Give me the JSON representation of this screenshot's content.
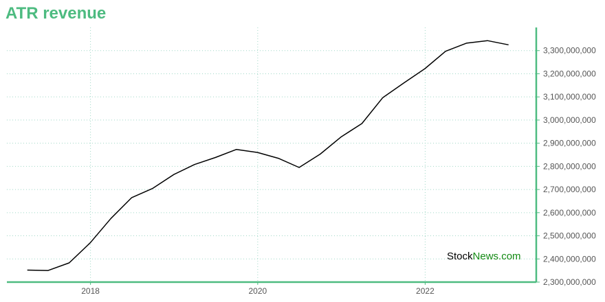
{
  "chart_data": {
    "type": "line",
    "title": "ATR revenue",
    "xlabel": "",
    "ylabel": "",
    "x_ticks": [
      "2018",
      "2020",
      "2022"
    ],
    "y_ticks": [
      "2,300,000,000",
      "2,400,000,000",
      "2,500,000,000",
      "2,600,000,000",
      "2,700,000,000",
      "2,800,000,000",
      "2,900,000,000",
      "3,000,000,000",
      "3,100,000,000",
      "3,200,000,000",
      "3,300,000,000"
    ],
    "ylim": [
      2300000000,
      3400000000
    ],
    "xlim": [
      "2017-01-01",
      "2023-05-01"
    ],
    "grid": true,
    "series": [
      {
        "x": [
          "2017-03-31",
          "2017-06-30",
          "2017-09-30",
          "2017-12-31",
          "2018-03-31",
          "2018-06-30",
          "2018-09-30",
          "2018-12-31",
          "2019-03-31",
          "2019-06-30",
          "2019-09-30",
          "2019-12-31",
          "2020-03-31",
          "2020-06-30",
          "2020-09-30",
          "2020-12-31",
          "2021-03-31",
          "2021-06-30",
          "2021-09-30",
          "2021-12-31",
          "2022-03-31",
          "2022-06-30",
          "2022-09-30",
          "2022-12-31"
        ],
        "values": [
          2352000000,
          2350000000,
          2383000000,
          2470000000,
          2575000000,
          2665000000,
          2705000000,
          2765000000,
          2808000000,
          2838000000,
          2873000000,
          2860000000,
          2835000000,
          2795000000,
          2853000000,
          2928000000,
          2985000000,
          3097000000,
          3160000000,
          3222000000,
          3297000000,
          3332000000,
          3343000000,
          3325000000
        ]
      }
    ],
    "colors": {
      "title": "#4dbb80",
      "axis": "#4dbb80",
      "grid": "#9ed7c5",
      "line": "#000000"
    }
  },
  "watermark": {
    "part1": "Stock",
    "part2": "News.com"
  }
}
